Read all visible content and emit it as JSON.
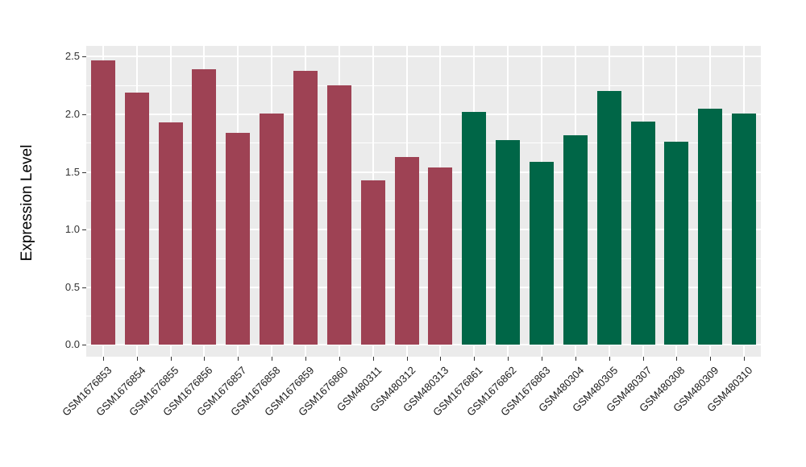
{
  "figure": {
    "background_color": "#FFFFFF",
    "panel_background_color": "#EBEBEB",
    "gridline_color": "#FFFFFF",
    "tick_color": "#333333",
    "group_colors": {
      "left_group": "#9E4254",
      "right_group": "#006647"
    }
  },
  "chart_data": {
    "type": "bar",
    "title": "",
    "xlabel": "",
    "ylabel": "Expression Level",
    "ylim": [
      0,
      2.59
    ],
    "yticks": [
      0.0,
      0.5,
      1.0,
      1.5,
      2.0,
      2.5
    ],
    "ytick_labels": [
      "0.0",
      "0.5",
      "1.0",
      "1.5",
      "2.0",
      "2.5"
    ],
    "yticks_minor": [
      0.25,
      0.75,
      1.25,
      1.75,
      2.25
    ],
    "grid": "on",
    "legend_position": "none",
    "x_label_rotation_deg": 45,
    "categories": [
      "GSM1676853",
      "GSM1676854",
      "GSM1676855",
      "GSM1676856",
      "GSM1676857",
      "GSM1676858",
      "GSM1676859",
      "GSM1676860",
      "GSM480311",
      "GSM480312",
      "GSM480313",
      "GSM1676861",
      "GSM1676862",
      "GSM1676863",
      "GSM480304",
      "GSM480305",
      "GSM480307",
      "GSM480308",
      "GSM480309",
      "GSM480310"
    ],
    "values": [
      2.47,
      2.19,
      1.93,
      2.39,
      1.84,
      2.01,
      2.38,
      2.25,
      1.43,
      1.63,
      1.54,
      2.02,
      1.78,
      1.59,
      1.82,
      2.2,
      1.94,
      1.76,
      2.05,
      2.01
    ],
    "bar_groups": [
      "left_group",
      "left_group",
      "left_group",
      "left_group",
      "left_group",
      "left_group",
      "left_group",
      "left_group",
      "left_group",
      "left_group",
      "left_group",
      "right_group",
      "right_group",
      "right_group",
      "right_group",
      "right_group",
      "right_group",
      "right_group",
      "right_group",
      "right_group"
    ]
  }
}
